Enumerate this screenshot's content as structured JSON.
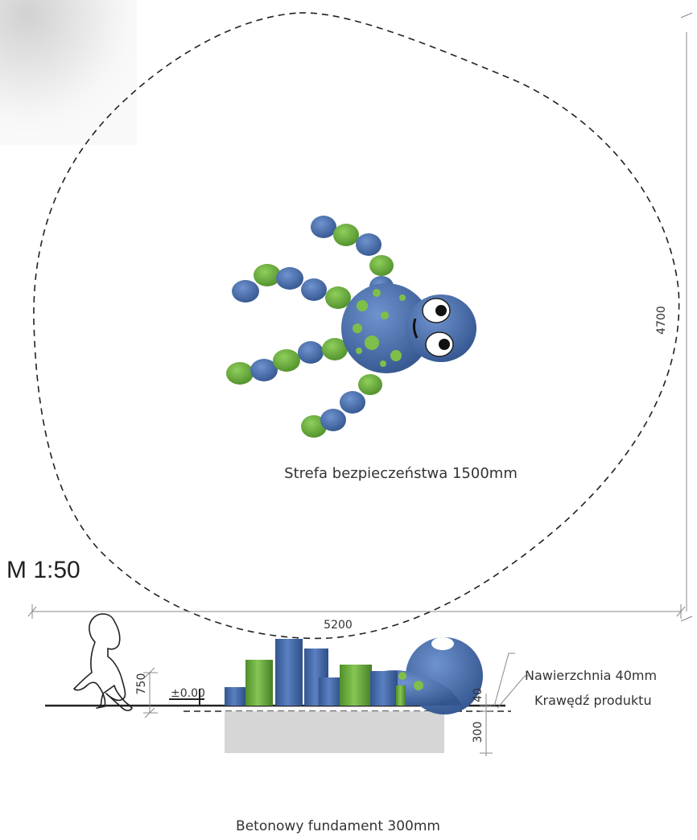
{
  "scale_label": "M 1:50",
  "safety_zone_label": "Strefa bezpieczeństwa 1500mm",
  "width_dimension": "5200",
  "height_dimension": "4700",
  "figure_height_dimension": "750",
  "ground_level_label": "±0.00",
  "surface_dimension": "40",
  "foundation_dimension": "300",
  "surface_label": "Nawierzchnia 40mm",
  "product_edge_label": "Krawędź produktu",
  "foundation_label": "Betonowy fundament 300mm",
  "colors": {
    "blue": "#4a70b0",
    "blue_dark": "#34568f",
    "green": "#6cae3e",
    "green_dark": "#4f8f2a",
    "foundation": "#d6d6d6",
    "line": "#222222"
  },
  "icons": [
    "octopus-top-view",
    "octopus-side-view",
    "child-silhouette",
    "level-marker-icon"
  ]
}
